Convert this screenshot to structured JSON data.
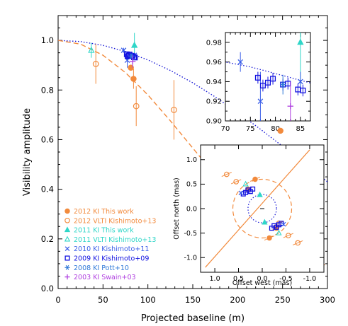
{
  "chart_data": [
    {
      "id": "main",
      "type": "scatter",
      "xlabel": "Projected baseline (m)",
      "ylabel": "Visibility amplitude",
      "xlim": [
        0,
        300
      ],
      "ylim": [
        0.0,
        1.1
      ],
      "xticks": [
        "0",
        "50",
        "100",
        "150",
        "200",
        "250",
        "300"
      ],
      "yticks": [
        "0.0",
        "0.2",
        "0.4",
        "0.6",
        "0.8",
        "1.0"
      ],
      "legend_placement": "bottom-left",
      "legend": [
        {
          "label": "2012 KI This work",
          "color": "#f28a3c",
          "marker": "filled-circle"
        },
        {
          "label": "2012 VLTI Kishimoto+13",
          "color": "#f28a3c",
          "marker": "open-circle"
        },
        {
          "label": "2011 KI This work",
          "color": "#2fd6c8",
          "marker": "filled-triangle"
        },
        {
          "label": "2011 VLTI Kishimoto+13",
          "color": "#2fd6c8",
          "marker": "open-triangle"
        },
        {
          "label": "2010 KI Kishimoto+11",
          "color": "#3a5ee8",
          "marker": "x"
        },
        {
          "label": "2009 KI Kishimoto+09",
          "color": "#1010e0",
          "marker": "open-square"
        },
        {
          "label": "2008 KI Pott+10",
          "color": "#2f78d8",
          "marker": "asterisk"
        },
        {
          "label": "2003 KI Swain+03",
          "color": "#b040e0",
          "marker": "plus"
        }
      ],
      "models": [
        {
          "style": "dotted",
          "color": "#1a1ad6",
          "x": [
            0,
            25,
            50,
            75,
            100,
            125,
            150,
            175,
            200,
            225,
            250,
            275,
            300
          ],
          "y": [
            1.0,
            0.995,
            0.98,
            0.955,
            0.921,
            0.879,
            0.829,
            0.772,
            0.71,
            0.643,
            0.573,
            0.501,
            0.43
          ]
        },
        {
          "style": "dashed",
          "color": "#f28a3c",
          "x": [
            0,
            25,
            50,
            75,
            100,
            125,
            150,
            175,
            200,
            225,
            250,
            275,
            300
          ],
          "y": [
            1.0,
            0.985,
            0.94,
            0.87,
            0.78,
            0.676,
            0.566,
            0.457,
            0.356,
            0.268,
            0.194,
            0.135,
            0.09
          ]
        }
      ],
      "series": [
        {
          "name": "2012 KI This work",
          "marker": "filled-circle",
          "color": "#f28a3c",
          "points": [
            {
              "x": 81,
              "y": 0.89,
              "err": 0.0
            },
            {
              "x": 84,
              "y": 0.845,
              "err": 0.04
            }
          ]
        },
        {
          "name": "2012 VLTI Kishimoto+13",
          "marker": "open-circle",
          "color": "#f28a3c",
          "points": [
            {
              "x": 42,
              "y": 0.905,
              "err": 0.08
            },
            {
              "x": 87,
              "y": 0.735,
              "err": 0.08
            },
            {
              "x": 129,
              "y": 0.72,
              "err": 0.12
            }
          ]
        },
        {
          "name": "2011 KI This work",
          "marker": "filled-triangle",
          "color": "#2fd6c8",
          "points": [
            {
              "x": 85,
              "y": 0.98,
              "err": 0.05
            }
          ]
        },
        {
          "name": "2011 VLTI Kishimoto+13",
          "marker": "open-triangle",
          "color": "#2fd6c8",
          "points": [
            {
              "x": 37,
              "y": 0.96,
              "err": 0.03
            }
          ]
        },
        {
          "name": "2010 KI Kishimoto+11",
          "marker": "x",
          "color": "#3a5ee8",
          "points": [
            {
              "x": 73,
              "y": 0.96,
              "err": 0.01
            },
            {
              "x": 77,
              "y": 0.92,
              "err": 0.03
            },
            {
              "x": 85,
              "y": 0.94,
              "err": 0.01
            }
          ]
        },
        {
          "name": "2009 KI Kishimoto+09",
          "marker": "open-square",
          "color": "#1010e0",
          "points": [
            {
              "x": 76.5,
              "y": 0.944,
              "err": 0.006
            },
            {
              "x": 77.5,
              "y": 0.936,
              "err": 0.006
            },
            {
              "x": 78.5,
              "y": 0.939,
              "err": 0.006
            },
            {
              "x": 79.5,
              "y": 0.943,
              "err": 0.006
            },
            {
              "x": 81.5,
              "y": 0.937,
              "err": 0.006
            },
            {
              "x": 82.5,
              "y": 0.938,
              "err": 0.006
            },
            {
              "x": 84.5,
              "y": 0.932,
              "err": 0.006
            },
            {
              "x": 85.5,
              "y": 0.931,
              "err": 0.006
            }
          ]
        },
        {
          "name": "2008 KI Pott+10",
          "marker": "asterisk",
          "color": "#2f78d8",
          "points": [
            {
              "x": 81.5,
              "y": 0.937,
              "err": 0.01
            }
          ]
        },
        {
          "name": "2003 KI Swain+03",
          "marker": "plus",
          "color": "#b040e0",
          "points": [
            {
              "x": 83,
              "y": 0.915,
              "err": 0.025
            }
          ]
        }
      ]
    },
    {
      "id": "inset-top",
      "type": "scatter",
      "xlim": [
        70,
        87
      ],
      "ylim": [
        0.9,
        0.99
      ],
      "xticks": [
        "70",
        "75",
        "80",
        "85"
      ],
      "yticks": [
        "0.90",
        "0.92",
        "0.94",
        "0.96",
        "0.98"
      ]
    },
    {
      "id": "inset-uv",
      "type": "scatter",
      "xlabel": "Offset west (mas)",
      "ylabel": "Offset north (mas)",
      "xlim": [
        1.3,
        -1.3
      ],
      "ylim": [
        -1.3,
        1.3
      ],
      "xticks": [
        "-1.0",
        "-0.5",
        "0.0",
        "0.5",
        "1.0"
      ],
      "yticks": [
        "-1.0",
        "-0.5",
        "0.0",
        "0.5",
        "1.0"
      ],
      "model_ring_radii": [
        0.3,
        0.62
      ],
      "position_angle_line": {
        "color": "#f28a3c",
        "from": [
          -1.0,
          1.2
        ],
        "to": [
          1.2,
          -1.2
        ]
      },
      "points": [
        {
          "marker": "open-circle",
          "color": "#f28a3c",
          "x": 0.75,
          "y": 0.7
        },
        {
          "marker": "open-circle",
          "color": "#f28a3c",
          "x": 0.55,
          "y": 0.55
        },
        {
          "marker": "open-circle",
          "color": "#f28a3c",
          "x": -0.75,
          "y": -0.7
        },
        {
          "marker": "open-circle",
          "color": "#f28a3c",
          "x": -0.55,
          "y": -0.55
        },
        {
          "marker": "open-circle",
          "color": "#f28a3c",
          "x": -0.35,
          "y": -0.3
        },
        {
          "marker": "filled-circle",
          "color": "#f28a3c",
          "x": 0.15,
          "y": 0.6
        },
        {
          "marker": "filled-circle",
          "color": "#f28a3c",
          "x": -0.15,
          "y": -0.6
        },
        {
          "marker": "filled-circle",
          "color": "#f28a3c",
          "x": 0.3,
          "y": 0.4
        },
        {
          "marker": "filled-circle",
          "color": "#f28a3c",
          "x": -0.3,
          "y": -0.4
        },
        {
          "marker": "filled-triangle",
          "color": "#2fd6c8",
          "x": 0.05,
          "y": 0.28
        },
        {
          "marker": "filled-triangle",
          "color": "#2fd6c8",
          "x": -0.05,
          "y": -0.28
        },
        {
          "marker": "open-triangle",
          "color": "#2fd6c8",
          "x": 0.35,
          "y": 0.5
        },
        {
          "marker": "open-triangle",
          "color": "#2fd6c8",
          "x": -0.35,
          "y": -0.5
        },
        {
          "marker": "open-square",
          "color": "#1010e0",
          "x": 0.2,
          "y": 0.4
        },
        {
          "marker": "open-square",
          "color": "#1010e0",
          "x": 0.25,
          "y": 0.35
        },
        {
          "marker": "open-square",
          "color": "#1010e0",
          "x": 0.3,
          "y": 0.38
        },
        {
          "marker": "open-square",
          "color": "#1010e0",
          "x": 0.35,
          "y": 0.33
        },
        {
          "marker": "open-square",
          "color": "#1010e0",
          "x": 0.4,
          "y": 0.3
        },
        {
          "marker": "open-square",
          "color": "#1010e0",
          "x": -0.2,
          "y": -0.4
        },
        {
          "marker": "open-square",
          "color": "#1010e0",
          "x": -0.25,
          "y": -0.35
        },
        {
          "marker": "open-square",
          "color": "#1010e0",
          "x": -0.3,
          "y": -0.38
        },
        {
          "marker": "open-square",
          "color": "#1010e0",
          "x": -0.35,
          "y": -0.33
        },
        {
          "marker": "open-square",
          "color": "#1010e0",
          "x": -0.4,
          "y": -0.3
        },
        {
          "marker": "x",
          "color": "#3a5ee8",
          "x": 0.45,
          "y": 0.32
        },
        {
          "marker": "x",
          "color": "#3a5ee8",
          "x": -0.45,
          "y": -0.32
        }
      ]
    }
  ]
}
